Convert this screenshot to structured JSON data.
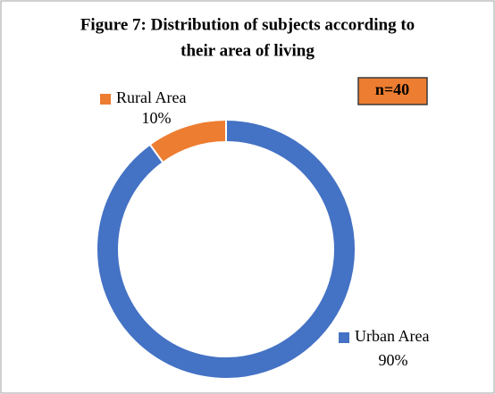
{
  "chart_data": {
    "type": "pie",
    "title": "Figure 7: Distribution of subjects according to",
    "subtitle": "their area of living",
    "annotation": "n=40",
    "categories": [
      "Urban Area",
      "Rural Area"
    ],
    "values": [
      90,
      10
    ],
    "value_labels": [
      "90%",
      "10%"
    ],
    "colors": [
      "#4472c4",
      "#ed7d31"
    ],
    "donut": true
  }
}
